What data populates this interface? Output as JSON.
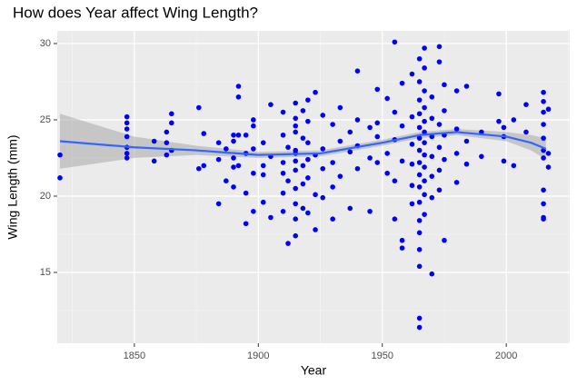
{
  "chart_data": {
    "type": "scatter",
    "title": "How does Year affect Wing Length?",
    "x_label": "Year",
    "y_label": "Wing Length (mm)",
    "xlim": [
      1818.9,
      2025.6
    ],
    "ylim": [
      10.36,
      30.83
    ],
    "xticks": [
      1850,
      1900,
      1950,
      2000
    ],
    "yticks": [
      15,
      20,
      25,
      30
    ],
    "xminorticks": [
      1825,
      1875,
      1925,
      1975,
      2025
    ],
    "yminorticks": [
      12.5,
      17.5,
      22.5,
      27.5
    ],
    "grid": true,
    "point_color": "#0000ff",
    "points": {
      "x": [
        1820,
        1820,
        1847,
        1847,
        1847,
        1847,
        1847,
        1847,
        1847,
        1858,
        1858,
        1863,
        1863,
        1863,
        1865,
        1865,
        1865,
        1876,
        1876,
        1878,
        1878,
        1884,
        1884,
        1884,
        1887,
        1887,
        1890,
        1890,
        1890,
        1890,
        1890,
        1892,
        1892,
        1892,
        1892,
        1895,
        1895,
        1895,
        1895,
        1898,
        1898,
        1898,
        1898,
        1898,
        1902,
        1902,
        1902,
        1902,
        1905,
        1905,
        1905,
        1910,
        1910,
        1910,
        1910,
        1910,
        1910,
        1912,
        1912,
        1912,
        1915,
        1915,
        1915,
        1915,
        1915,
        1915,
        1915,
        1915,
        1915,
        1915,
        1915,
        1915,
        1918,
        1918,
        1918,
        1918,
        1918,
        1920,
        1920,
        1920,
        1920,
        1920,
        1920,
        1923,
        1923,
        1923,
        1923,
        1926,
        1926,
        1926,
        1926,
        1930,
        1930,
        1930,
        1930,
        1933,
        1933,
        1933,
        1937,
        1937,
        1937,
        1940,
        1940,
        1940,
        1940,
        1945,
        1945,
        1945,
        1948,
        1948,
        1948,
        1948,
        1952,
        1952,
        1952,
        1955,
        1955,
        1955,
        1955,
        1955,
        1958,
        1958,
        1958,
        1958,
        1958,
        1962,
        1962,
        1962,
        1962,
        1962,
        1962,
        1965,
        1965,
        1965,
        1965,
        1965,
        1965,
        1965,
        1965,
        1965,
        1965,
        1965,
        1965,
        1965,
        1965,
        1965,
        1965,
        1965,
        1967,
        1967,
        1967,
        1967,
        1967,
        1967,
        1967,
        1967,
        1967,
        1967,
        1967,
        1967,
        1970,
        1970,
        1970,
        1970,
        1970,
        1970,
        1970,
        1973,
        1973,
        1973,
        1973,
        1973,
        1973,
        1975,
        1975,
        1975,
        1975,
        1975,
        1980,
        1980,
        1980,
        1980,
        1984,
        1984,
        1984,
        1990,
        1990,
        1997,
        1997,
        1999,
        1999,
        1999,
        2003,
        2003,
        2008,
        2008,
        2015,
        2015,
        2015,
        2015,
        2015,
        2015,
        2015,
        2015,
        2015,
        2015,
        2015,
        2017,
        2017,
        2017
      ],
      "y": [
        22.7,
        21.2,
        25.2,
        24.8,
        24.4,
        23.9,
        23.2,
        22.8,
        22.5,
        23.6,
        22.3,
        24.2,
        23.5,
        22.7,
        24.8,
        25.4,
        23.0,
        25.8,
        21.8,
        22.0,
        24.1,
        23.5,
        19.5,
        22.4,
        23.1,
        21.0,
        24.0,
        22.5,
        21.9,
        20.6,
        23.6,
        27.2,
        26.5,
        24.0,
        22.0,
        18.2,
        20.2,
        22.8,
        24.0,
        25.0,
        24.6,
        23.1,
        21.5,
        19.0,
        22.0,
        21.4,
        23.5,
        19.6,
        26.0,
        22.6,
        18.6,
        25.5,
        24.0,
        22.2,
        21.5,
        20.2,
        19.0,
        16.9,
        23.2,
        21.0,
        26.1,
        25.1,
        24.2,
        23.0,
        22.3,
        21.7,
        20.5,
        19.5,
        18.5,
        17.4,
        22.8,
        24.6,
        25.6,
        23.8,
        22.0,
        20.8,
        19.2,
        26.3,
        24.9,
        23.5,
        22.4,
        21.2,
        18.9,
        26.8,
        22.7,
        20.1,
        17.8,
        25.3,
        23.1,
        21.8,
        19.9,
        24.7,
        22.2,
        20.6,
        18.5,
        25.8,
        23.6,
        21.3,
        24.2,
        22.9,
        19.2,
        28.2,
        25.0,
        23.3,
        21.8,
        19.0,
        22.5,
        24.5,
        27.0,
        23.9,
        22.2,
        24.8,
        26.4,
        22.8,
        21.5,
        30.1,
        25.5,
        23.7,
        18.5,
        21.0,
        27.4,
        24.6,
        22.3,
        16.6,
        17.1,
        28.0,
        25.2,
        23.4,
        22.1,
        20.7,
        19.5,
        29.0,
        27.5,
        26.3,
        25.4,
        24.5,
        23.8,
        23.0,
        22.2,
        21.4,
        20.6,
        19.6,
        18.4,
        17.6,
        16.5,
        15.4,
        12.0,
        11.4,
        29.7,
        28.4,
        26.9,
        25.8,
        24.9,
        24.2,
        23.5,
        22.7,
        21.9,
        21.0,
        20.1,
        18.8,
        26.5,
        25.1,
        23.9,
        22.6,
        21.3,
        19.9,
        14.9,
        29.8,
        28.8,
        24.7,
        23.2,
        21.7,
        20.4,
        27.3,
        25.6,
        24.0,
        22.4,
        17.1,
        26.9,
        24.4,
        22.8,
        20.9,
        27.2,
        23.6,
        22.1,
        24.2,
        22.6,
        24.9,
        26.7,
        24.5,
        23.9,
        22.3,
        25.0,
        22.0,
        26.0,
        24.2,
        26.8,
        26.2,
        25.5,
        24.7,
        23.8,
        23.0,
        22.5,
        20.4,
        18.6,
        18.5,
        19.5,
        25.7,
        22.8,
        21.9
      ]
    },
    "smooth": {
      "color": "#3366ff",
      "band_color": "#999999",
      "x": [
        1820,
        1850,
        1875,
        1900,
        1925,
        1950,
        1965,
        1980,
        2000,
        2010,
        2016
      ],
      "y": [
        23.6,
        23.2,
        23.0,
        22.7,
        22.8,
        23.5,
        24.0,
        24.2,
        23.9,
        23.5,
        23.1
      ],
      "lower": [
        21.8,
        22.5,
        22.7,
        22.5,
        22.6,
        23.3,
        23.8,
        24.0,
        23.6,
        23.0,
        22.4
      ],
      "upper": [
        25.4,
        23.9,
        23.3,
        22.9,
        23.0,
        23.7,
        24.2,
        24.4,
        24.2,
        24.0,
        23.8
      ]
    }
  }
}
